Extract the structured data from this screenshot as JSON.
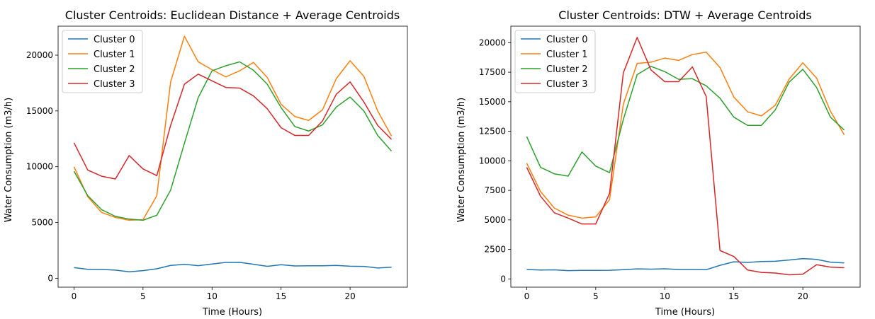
{
  "chart_data": [
    {
      "type": "line",
      "title": "Cluster Centroids: Euclidean Distance + Average Centroids",
      "xlabel": "Time (Hours)",
      "ylabel": "Water Consumption (m3/h)",
      "xlim": [
        -1.15,
        24.15
      ],
      "ylim": [
        -800,
        22600
      ],
      "xticks": [
        0,
        5,
        10,
        15,
        20
      ],
      "yticks": [
        0,
        5000,
        10000,
        15000,
        20000
      ],
      "legend": "upper-left",
      "x": [
        0,
        1,
        2,
        3,
        4,
        5,
        6,
        7,
        8,
        9,
        10,
        11,
        12,
        13,
        14,
        15,
        16,
        17,
        18,
        19,
        20,
        21,
        22,
        23
      ],
      "series": [
        {
          "name": "Cluster 0",
          "color": "#1f77b4",
          "values": [
            950,
            800,
            790,
            730,
            580,
            680,
            850,
            1150,
            1250,
            1130,
            1280,
            1420,
            1430,
            1250,
            1070,
            1210,
            1100,
            1120,
            1120,
            1150,
            1080,
            1060,
            920,
            990
          ]
        },
        {
          "name": "Cluster 1",
          "color": "#ff7f0e",
          "values": [
            10000,
            7300,
            5900,
            5450,
            5200,
            5250,
            7400,
            17600,
            21700,
            19400,
            18700,
            18050,
            18600,
            19350,
            18000,
            15600,
            14500,
            14150,
            15100,
            17900,
            19500,
            18100,
            15000,
            12750
          ]
        },
        {
          "name": "Cluster 2",
          "color": "#2ca02c",
          "values": [
            9600,
            7400,
            6150,
            5550,
            5300,
            5200,
            5650,
            7900,
            12100,
            16200,
            18600,
            19050,
            19400,
            18650,
            17400,
            15300,
            13600,
            13200,
            13750,
            15350,
            16250,
            15000,
            12800,
            11400
          ]
        },
        {
          "name": "Cluster 3",
          "color": "#d62728",
          "values": [
            12150,
            9700,
            9150,
            8900,
            11000,
            9800,
            9200,
            13700,
            17400,
            18300,
            17700,
            17100,
            17050,
            16350,
            15200,
            13500,
            12800,
            12800,
            14100,
            16500,
            17600,
            15800,
            13700,
            12450
          ]
        }
      ]
    },
    {
      "type": "line",
      "title": "Cluster Centroids: DTW + Average Centroids",
      "xlabel": "Time (Hours)",
      "ylabel": "Water Consumption (m3/h)",
      "xlim": [
        -1.15,
        24.15
      ],
      "ylim": [
        -700,
        21400
      ],
      "xticks": [
        0,
        5,
        10,
        15,
        20
      ],
      "yticks": [
        0,
        2500,
        5000,
        7500,
        10000,
        12500,
        15000,
        17500,
        20000
      ],
      "legend": "upper-left",
      "x": [
        0,
        1,
        2,
        3,
        4,
        5,
        6,
        7,
        8,
        9,
        10,
        11,
        12,
        13,
        14,
        15,
        16,
        17,
        18,
        19,
        20,
        21,
        22,
        23
      ],
      "series": [
        {
          "name": "Cluster 0",
          "color": "#1f77b4",
          "values": [
            800,
            750,
            770,
            700,
            720,
            720,
            730,
            780,
            850,
            830,
            860,
            800,
            800,
            780,
            1150,
            1450,
            1400,
            1470,
            1490,
            1600,
            1720,
            1650,
            1420,
            1350
          ]
        },
        {
          "name": "Cluster 1",
          "color": "#ff7f0e",
          "values": [
            9800,
            7400,
            6000,
            5400,
            5150,
            5250,
            6700,
            14800,
            18250,
            18350,
            18700,
            18500,
            19000,
            19200,
            17900,
            15400,
            14150,
            13800,
            14700,
            16900,
            18300,
            17000,
            14200,
            12200
          ]
        },
        {
          "name": "Cluster 2",
          "color": "#2ca02c",
          "values": [
            12050,
            9450,
            8900,
            8700,
            10750,
            9550,
            9000,
            13500,
            17300,
            18000,
            17550,
            16900,
            16950,
            16350,
            15300,
            13700,
            13000,
            13000,
            14300,
            16650,
            17750,
            16200,
            13700,
            12600
          ]
        },
        {
          "name": "Cluster 3",
          "color": "#d62728",
          "values": [
            9450,
            7000,
            5600,
            5150,
            4650,
            4650,
            7250,
            17450,
            20450,
            17700,
            16700,
            16700,
            17950,
            15450,
            2400,
            1900,
            750,
            550,
            500,
            350,
            400,
            1200,
            1000,
            950
          ]
        }
      ]
    }
  ]
}
